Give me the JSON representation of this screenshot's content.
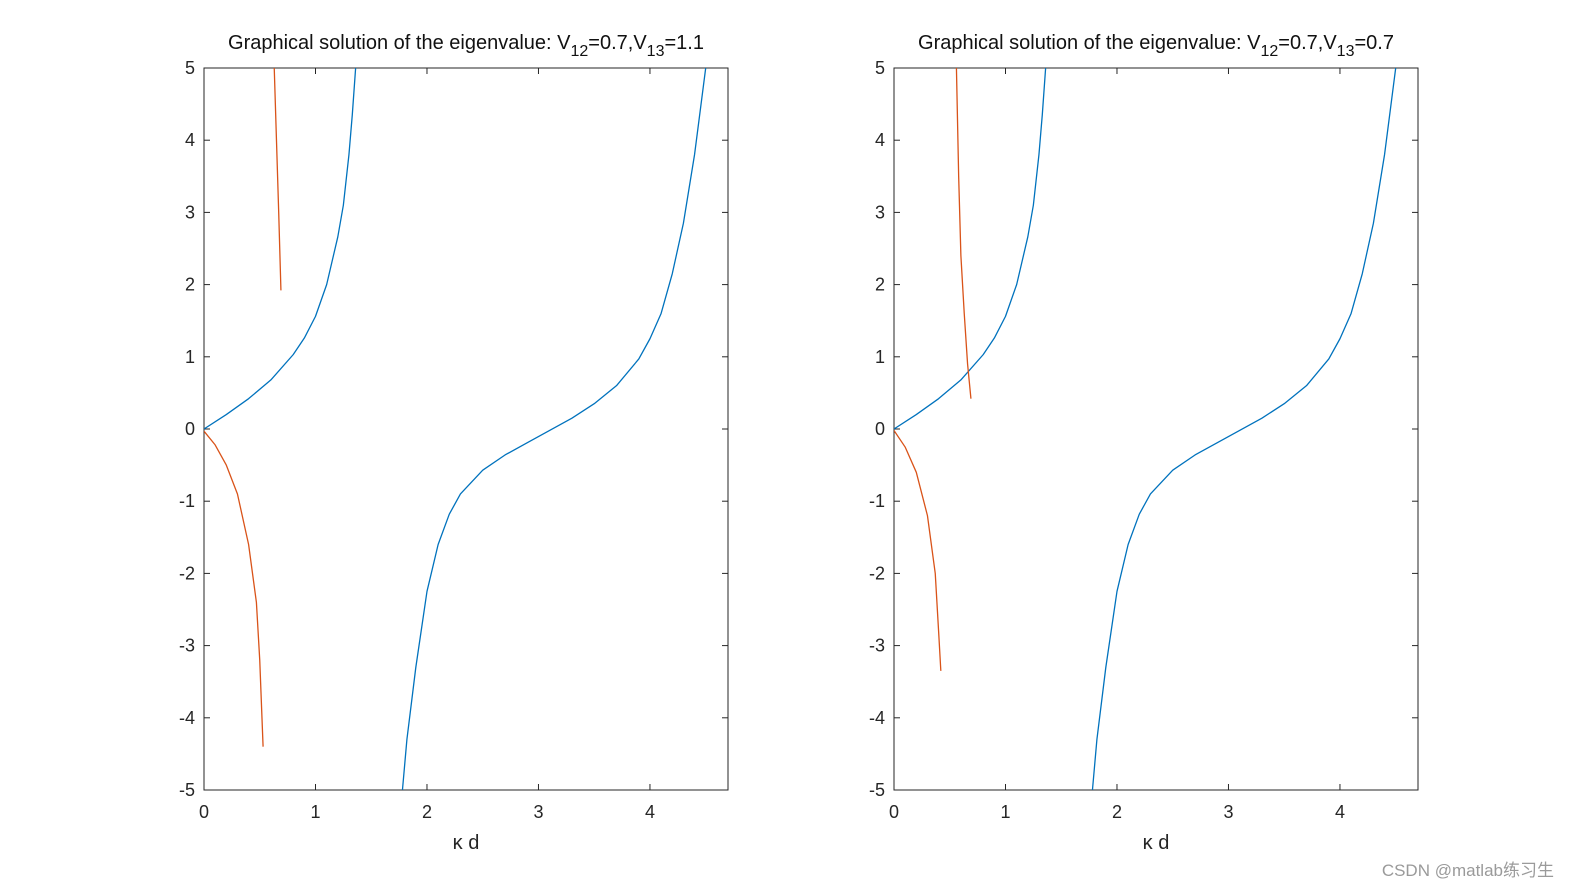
{
  "chart_data": [
    {
      "type": "line",
      "title": {
        "prefix": "Graphical solution of the eigenvalue: V",
        "sub1": "12",
        "mid": "=0.7,V",
        "sub2": "13",
        "suffix": "=1.1"
      },
      "xlabel": "κ d",
      "ylabel": "",
      "xlim": [
        0,
        4.7
      ],
      "ylim": [
        -5,
        5
      ],
      "xticks": [
        "0",
        "1",
        "2",
        "3",
        "4"
      ],
      "yticks": [
        "-5",
        "-4",
        "-3",
        "-2",
        "-1",
        "0",
        "1",
        "2",
        "3",
        "4",
        "5"
      ],
      "grid": false,
      "series": [
        {
          "color": "#0072BD",
          "segments": [
            [
              [
                0.0,
                0.0
              ],
              [
                0.2,
                0.2
              ],
              [
                0.4,
                0.42
              ],
              [
                0.6,
                0.68
              ],
              [
                0.8,
                1.03
              ],
              [
                0.9,
                1.26
              ],
              [
                1.0,
                1.56
              ],
              [
                1.1,
                2.0
              ],
              [
                1.2,
                2.66
              ],
              [
                1.25,
                3.1
              ],
              [
                1.3,
                3.8
              ],
              [
                1.33,
                4.35
              ],
              [
                1.36,
                5.0
              ]
            ],
            [
              [
                1.78,
                -5.0
              ],
              [
                1.82,
                -4.3
              ],
              [
                1.9,
                -3.3
              ],
              [
                2.0,
                -2.25
              ],
              [
                2.1,
                -1.6
              ],
              [
                2.2,
                -1.18
              ],
              [
                2.3,
                -0.9
              ],
              [
                2.5,
                -0.57
              ],
              [
                2.7,
                -0.36
              ],
              [
                2.9,
                -0.19
              ],
              [
                3.1,
                -0.02
              ],
              [
                3.3,
                0.15
              ],
              [
                3.5,
                0.35
              ],
              [
                3.7,
                0.6
              ],
              [
                3.9,
                0.97
              ],
              [
                4.0,
                1.25
              ],
              [
                4.1,
                1.6
              ],
              [
                4.2,
                2.15
              ],
              [
                4.3,
                2.85
              ],
              [
                4.4,
                3.8
              ],
              [
                4.45,
                4.4
              ],
              [
                4.5,
                5.0
              ]
            ]
          ]
        },
        {
          "color": "#D95319",
          "segments": [
            [
              [
                0.63,
                5.0
              ],
              [
                0.65,
                4.0
              ],
              [
                0.67,
                3.0
              ],
              [
                0.69,
                1.92
              ]
            ],
            [
              [
                0.0,
                -0.03
              ],
              [
                0.1,
                -0.22
              ],
              [
                0.2,
                -0.5
              ],
              [
                0.3,
                -0.9
              ],
              [
                0.4,
                -1.6
              ],
              [
                0.47,
                -2.4
              ],
              [
                0.5,
                -3.2
              ],
              [
                0.53,
                -4.4
              ]
            ]
          ]
        }
      ]
    },
    {
      "type": "line",
      "title": {
        "prefix": "Graphical solution of the eigenvalue: V",
        "sub1": "12",
        "mid": "=0.7,V",
        "sub2": "13",
        "suffix": "=0.7"
      },
      "xlabel": "κ d",
      "ylabel": "",
      "xlim": [
        0,
        4.7
      ],
      "ylim": [
        -5,
        5
      ],
      "xticks": [
        "0",
        "1",
        "2",
        "3",
        "4"
      ],
      "yticks": [
        "-5",
        "-4",
        "-3",
        "-2",
        "-1",
        "0",
        "1",
        "2",
        "3",
        "4",
        "5"
      ],
      "grid": false,
      "series": [
        {
          "color": "#0072BD",
          "segments": [
            [
              [
                0.0,
                0.0
              ],
              [
                0.2,
                0.2
              ],
              [
                0.4,
                0.42
              ],
              [
                0.6,
                0.68
              ],
              [
                0.8,
                1.03
              ],
              [
                0.9,
                1.26
              ],
              [
                1.0,
                1.56
              ],
              [
                1.1,
                2.0
              ],
              [
                1.2,
                2.66
              ],
              [
                1.25,
                3.1
              ],
              [
                1.3,
                3.8
              ],
              [
                1.33,
                4.35
              ],
              [
                1.36,
                5.0
              ]
            ],
            [
              [
                1.78,
                -5.0
              ],
              [
                1.82,
                -4.3
              ],
              [
                1.9,
                -3.3
              ],
              [
                2.0,
                -2.25
              ],
              [
                2.1,
                -1.6
              ],
              [
                2.2,
                -1.18
              ],
              [
                2.3,
                -0.9
              ],
              [
                2.5,
                -0.57
              ],
              [
                2.7,
                -0.36
              ],
              [
                2.9,
                -0.19
              ],
              [
                3.1,
                -0.02
              ],
              [
                3.3,
                0.15
              ],
              [
                3.5,
                0.35
              ],
              [
                3.7,
                0.6
              ],
              [
                3.9,
                0.97
              ],
              [
                4.0,
                1.25
              ],
              [
                4.1,
                1.6
              ],
              [
                4.2,
                2.15
              ],
              [
                4.3,
                2.85
              ],
              [
                4.4,
                3.8
              ],
              [
                4.45,
                4.4
              ],
              [
                4.5,
                5.0
              ]
            ]
          ]
        },
        {
          "color": "#D95319",
          "segments": [
            [
              [
                0.56,
                5.0
              ],
              [
                0.58,
                3.5
              ],
              [
                0.6,
                2.4
              ],
              [
                0.63,
                1.6
              ],
              [
                0.66,
                0.9
              ],
              [
                0.69,
                0.42
              ]
            ],
            [
              [
                0.0,
                -0.02
              ],
              [
                0.1,
                -0.25
              ],
              [
                0.2,
                -0.6
              ],
              [
                0.3,
                -1.2
              ],
              [
                0.37,
                -2.0
              ],
              [
                0.4,
                -2.8
              ],
              [
                0.42,
                -3.35
              ]
            ]
          ]
        }
      ]
    }
  ],
  "watermark": "CSDN @matlab练习生"
}
